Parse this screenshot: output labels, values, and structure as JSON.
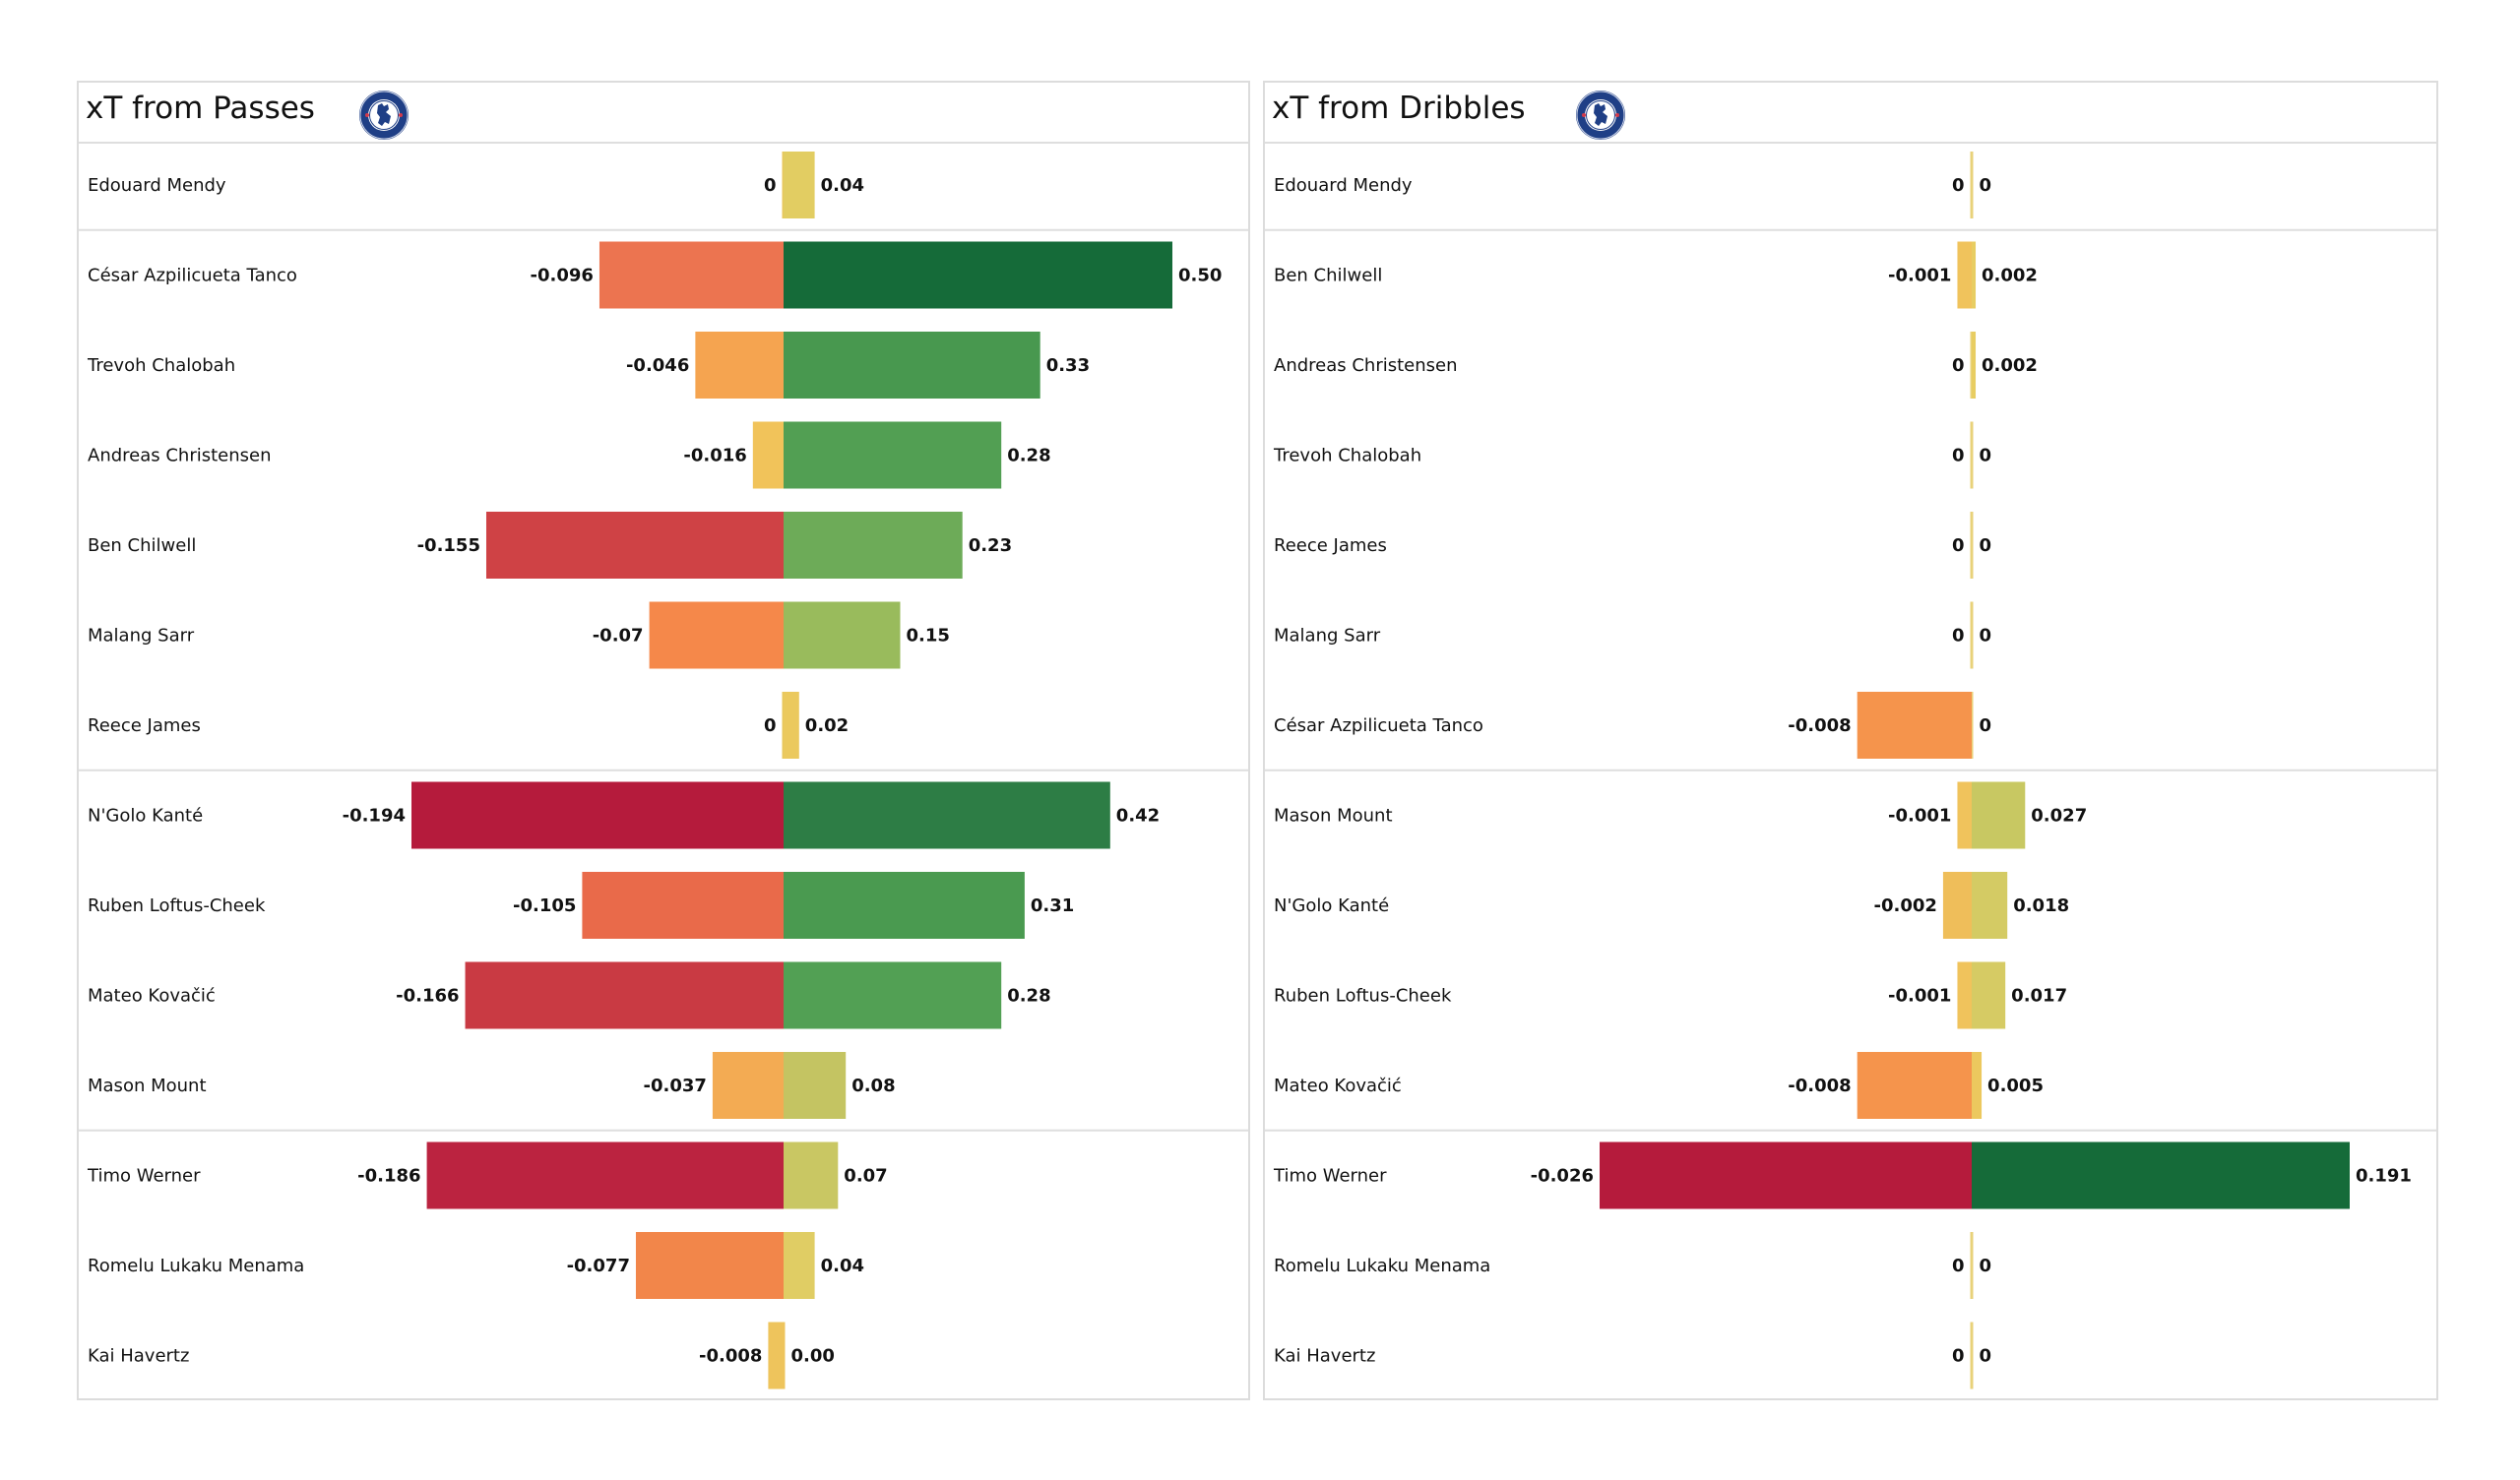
{
  "chart_data": [
    {
      "type": "bar",
      "orientation": "horizontal-diverging",
      "title": "xT from Passes",
      "logo": "chelsea-crest-icon",
      "groups": [
        {
          "rows": [
            {
              "player": "Edouard Mendy",
              "neg": 0,
              "pos": 0.04,
              "neg_label": "0",
              "pos_label": "0.04",
              "neg_color": "#e8c85e",
              "pos_color": "#e2cd62"
            }
          ]
        },
        {
          "rows": [
            {
              "player": "César Azpilicueta Tanco",
              "neg": -0.096,
              "pos": 0.5,
              "neg_label": "-0.096",
              "pos_label": "0.50",
              "neg_color": "#ec7450",
              "pos_color": "#156b39"
            },
            {
              "player": "Trevoh Chalobah",
              "neg": -0.046,
              "pos": 0.33,
              "neg_label": "-0.046",
              "pos_label": "0.33",
              "neg_color": "#f5a450",
              "pos_color": "#48984f"
            },
            {
              "player": "Andreas Christensen",
              "neg": -0.016,
              "pos": 0.28,
              "neg_label": "-0.016",
              "pos_label": "0.28",
              "neg_color": "#f1c35a",
              "pos_color": "#529f53"
            },
            {
              "player": "Ben Chilwell",
              "neg": -0.155,
              "pos": 0.23,
              "neg_label": "-0.155",
              "pos_label": "0.23",
              "neg_color": "#cf4245",
              "pos_color": "#6dab58"
            },
            {
              "player": "Malang Sarr",
              "neg": -0.07,
              "pos": 0.15,
              "neg_label": "-0.07",
              "pos_label": "0.15",
              "neg_color": "#f5884a",
              "pos_color": "#99bb5c"
            },
            {
              "player": "Reece James",
              "neg": 0,
              "pos": 0.02,
              "neg_label": "0",
              "pos_label": "0.02",
              "neg_color": "#e8c85e",
              "pos_color": "#ebc95e"
            }
          ]
        },
        {
          "rows": [
            {
              "player": "N'Golo Kanté",
              "neg": -0.194,
              "pos": 0.42,
              "neg_label": "-0.194",
              "pos_label": "0.42",
              "neg_color": "#b51b3c",
              "pos_color": "#2d7d45"
            },
            {
              "player": "Ruben Loftus-Cheek",
              "neg": -0.105,
              "pos": 0.31,
              "neg_label": "-0.105",
              "pos_label": "0.31",
              "neg_color": "#e96a4a",
              "pos_color": "#4a9a50"
            },
            {
              "player": "Mateo Kovačić",
              "neg": -0.166,
              "pos": 0.28,
              "neg_label": "-0.166",
              "pos_label": "0.28",
              "neg_color": "#c93a43",
              "pos_color": "#52a054"
            },
            {
              "player": "Mason Mount",
              "neg": -0.037,
              "pos": 0.08,
              "neg_label": "-0.037",
              "pos_label": "0.08",
              "neg_color": "#f3ab53",
              "pos_color": "#c4c462"
            }
          ]
        },
        {
          "rows": [
            {
              "player": "Timo Werner",
              "neg": -0.186,
              "pos": 0.07,
              "neg_label": "-0.186",
              "pos_label": "0.07",
              "neg_color": "#bb2340",
              "pos_color": "#c9c763"
            },
            {
              "player": "Romelu Lukaku Menama",
              "neg": -0.077,
              "pos": 0.04,
              "neg_label": "-0.077",
              "pos_label": "0.04",
              "neg_color": "#f2864a",
              "pos_color": "#e0cd64"
            },
            {
              "player": "Kai Havertz",
              "neg": -0.008,
              "pos": 0.0,
              "neg_label": "-0.008",
              "pos_label": "0.00",
              "neg_color": "#eec45c",
              "pos_color": "#eec45c"
            }
          ]
        }
      ]
    },
    {
      "type": "bar",
      "orientation": "horizontal-diverging",
      "title": "xT from Dribbles",
      "logo": "chelsea-crest-icon",
      "groups": [
        {
          "rows": [
            {
              "player": "Edouard Mendy",
              "neg": 0,
              "pos": 0,
              "neg_label": "0",
              "pos_label": "0",
              "neg_color": "#e8d27a",
              "pos_color": "#e8d27a"
            }
          ]
        },
        {
          "rows": [
            {
              "player": "Ben Chilwell",
              "neg": -0.001,
              "pos": 0.002,
              "neg_label": "-0.001",
              "pos_label": "0.002",
              "neg_color": "#f0c35c",
              "pos_color": "#e8cd62"
            },
            {
              "player": "Andreas Christensen",
              "neg": 0,
              "pos": 0.002,
              "neg_label": "0",
              "pos_label": "0.002",
              "neg_color": "#e8d27a",
              "pos_color": "#e8cd62"
            },
            {
              "player": "Trevoh Chalobah",
              "neg": 0,
              "pos": 0,
              "neg_label": "0",
              "pos_label": "0",
              "neg_color": "#e8d27a",
              "pos_color": "#e8d27a"
            },
            {
              "player": "Reece James",
              "neg": 0,
              "pos": 0,
              "neg_label": "0",
              "pos_label": "0",
              "neg_color": "#e8d27a",
              "pos_color": "#e8d27a"
            },
            {
              "player": "Malang Sarr",
              "neg": 0,
              "pos": 0,
              "neg_label": "0",
              "pos_label": "0",
              "neg_color": "#e8d27a",
              "pos_color": "#e8d27a"
            },
            {
              "player": "César Azpilicueta Tanco",
              "neg": -0.008,
              "pos": 0,
              "neg_label": "-0.008",
              "pos_label": "0",
              "neg_color": "#f5944c",
              "pos_color": "#e8d27a"
            }
          ]
        },
        {
          "rows": [
            {
              "player": "Mason Mount",
              "neg": -0.001,
              "pos": 0.027,
              "neg_label": "-0.001",
              "pos_label": "0.027",
              "neg_color": "#f0c35c",
              "pos_color": "#c8c862"
            },
            {
              "player": "N'Golo Kanté",
              "neg": -0.002,
              "pos": 0.018,
              "neg_label": "-0.002",
              "pos_label": "0.018",
              "neg_color": "#efbe5a",
              "pos_color": "#d4cb64"
            },
            {
              "player": "Ruben Loftus-Cheek",
              "neg": -0.001,
              "pos": 0.017,
              "neg_label": "-0.001",
              "pos_label": "0.017",
              "neg_color": "#f0c35c",
              "pos_color": "#d6cb64"
            },
            {
              "player": "Mateo Kovačić",
              "neg": -0.008,
              "pos": 0.005,
              "neg_label": "-0.008",
              "pos_label": "0.005",
              "neg_color": "#f5944c",
              "pos_color": "#ecc85e"
            }
          ]
        },
        {
          "rows": [
            {
              "player": "Timo Werner",
              "neg": -0.026,
              "pos": 0.191,
              "neg_label": "-0.026",
              "pos_label": "0.191",
              "neg_color": "#b51b3c",
              "pos_color": "#156b39"
            },
            {
              "player": "Romelu Lukaku Menama",
              "neg": 0,
              "pos": 0,
              "neg_label": "0",
              "pos_label": "0",
              "neg_color": "#e8d27a",
              "pos_color": "#e8d27a"
            },
            {
              "player": "Kai Havertz",
              "neg": 0,
              "pos": 0,
              "neg_label": "0",
              "pos_label": "0",
              "neg_color": "#e8d27a",
              "pos_color": "#e8d27a"
            }
          ]
        }
      ]
    }
  ],
  "panels": {
    "passes": {
      "title": "xT from Passes"
    },
    "dribbles": {
      "title": "xT from Dribbles"
    }
  }
}
